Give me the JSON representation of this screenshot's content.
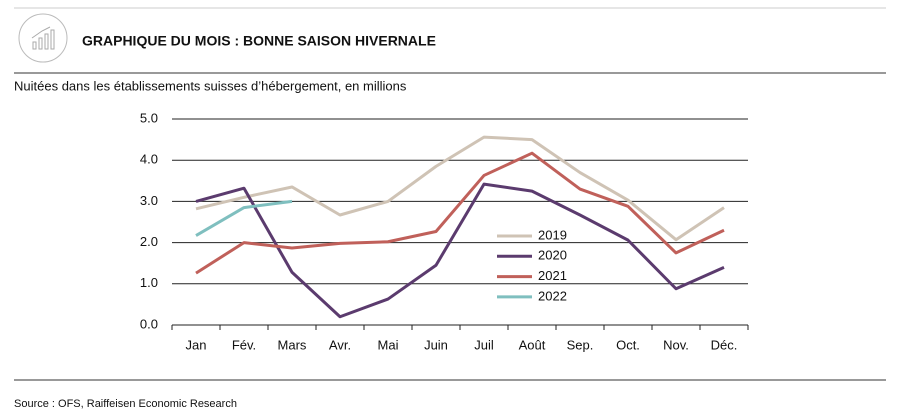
{
  "chart_data": {
    "type": "line",
    "title": "GRAPHIQUE DU MOIS : BONNE SAISON HIVERNALE",
    "subtitle": "Nuitées dans les établissements suisses d’hébergement, en millions",
    "source": "Source : OFS, Raiffeisen Economic Research",
    "categories": [
      "Jan",
      "Fév.",
      "Mars",
      "Avr.",
      "Mai",
      "Juin",
      "Juil",
      "Août",
      "Sep.",
      "Oct.",
      "Nov.",
      "Déc."
    ],
    "series": [
      {
        "name": "2019",
        "color": "#cfc3b5",
        "values": [
          2.82,
          3.1,
          3.35,
          2.67,
          3.0,
          3.85,
          4.56,
          4.5,
          3.7,
          3.03,
          2.07,
          2.85
        ]
      },
      {
        "name": "2020",
        "color": "#5b3b6e",
        "values": [
          3.0,
          3.32,
          1.28,
          0.2,
          0.63,
          1.45,
          3.42,
          3.25,
          2.67,
          2.06,
          0.88,
          1.4
        ]
      },
      {
        "name": "2021",
        "color": "#c0605a",
        "values": [
          1.26,
          2.0,
          1.87,
          1.98,
          2.02,
          2.27,
          3.63,
          4.17,
          3.3,
          2.88,
          1.75,
          2.3
        ]
      },
      {
        "name": "2022",
        "color": "#7fbfbf",
        "values": [
          2.17,
          2.85,
          3.0,
          null,
          null,
          null,
          null,
          null,
          null,
          null,
          null,
          null
        ]
      }
    ],
    "ylim": [
      0,
      5
    ],
    "yticks": [
      {
        "value": 0,
        "label": "0.0"
      },
      {
        "value": 1,
        "label": "1.0"
      },
      {
        "value": 2,
        "label": "2.0"
      },
      {
        "value": 3,
        "label": "3.0"
      },
      {
        "value": 4,
        "label": "4.0"
      },
      {
        "value": 5,
        "label": "5.0"
      }
    ],
    "grid": true
  }
}
